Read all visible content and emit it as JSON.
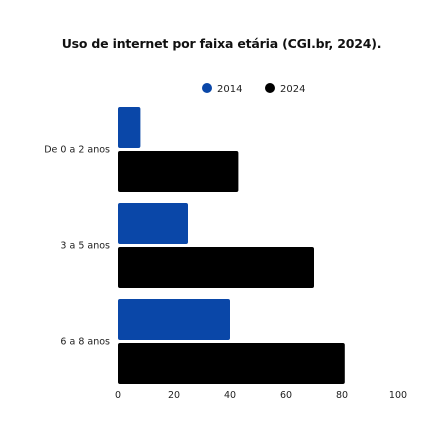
{
  "chart_data": {
    "type": "bar",
    "orientation": "horizontal",
    "title": "Uso de internet por faixa etária (CGI.br, 2024).",
    "categories": [
      "De 0 a 2 anos",
      "3 a 5 anos",
      "6 a 8 anos"
    ],
    "series": [
      {
        "name": "2014",
        "color": "#0a47a8",
        "values": [
          8,
          25,
          40
        ]
      },
      {
        "name": "2024",
        "color": "#000000",
        "values": [
          43,
          70,
          81
        ]
      }
    ],
    "xlim": [
      0,
      100
    ],
    "xticks": [
      "0",
      "20",
      "40",
      "60",
      "80",
      "100"
    ],
    "grid": false,
    "legend": "top-center"
  }
}
